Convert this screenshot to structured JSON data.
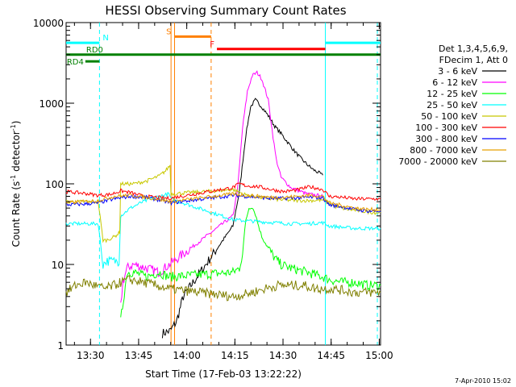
{
  "chart_data": {
    "type": "line",
    "title": "HESSI Observing Summary Count Rates",
    "xlabel": "Start Time (17-Feb-03 13:22:22)",
    "ylabel_main": "Count Rate (s",
    "ylabel_sup1": "-1",
    "ylabel_mid": " detector",
    "ylabel_sup2": "-1",
    "ylabel_end": ")",
    "y_scale": "log",
    "ylim": [
      1,
      10000
    ],
    "xlim_minutes": [
      0,
      98
    ],
    "x_unit": "minutes after 13:22:22",
    "grid": false,
    "x_ticks": [
      {
        "label": "13:30",
        "value": 7.6
      },
      {
        "label": "13:45",
        "value": 22.6
      },
      {
        "label": "14:00",
        "value": 37.6
      },
      {
        "label": "14:15",
        "value": 52.6
      },
      {
        "label": "14:30",
        "value": 67.6
      },
      {
        "label": "14:45",
        "value": 82.6
      },
      {
        "label": "15:00",
        "value": 97.6
      }
    ],
    "y_ticks": [
      {
        "label": "1",
        "value": 1
      },
      {
        "label": "10",
        "value": 10
      },
      {
        "label": "100",
        "value": 100
      },
      {
        "label": "1000",
        "value": 1000
      },
      {
        "label": "10000",
        "value": 10000
      }
    ],
    "legend_header": [
      "Det 1,3,4,5,6,9,",
      "FDecim 1, Att 0"
    ],
    "legend_position": "right",
    "series": [
      {
        "name": "3 - 6 keV",
        "color": "#000000",
        "points": [
          [
            30,
            1.4
          ],
          [
            32.5,
            1.5
          ],
          [
            34.5,
            2
          ],
          [
            36.5,
            4
          ],
          [
            52,
            30
          ],
          [
            54,
            80
          ],
          [
            56,
            400
          ],
          [
            57.5,
            900
          ],
          [
            59,
            1100
          ],
          [
            61,
            900
          ],
          [
            63,
            700
          ],
          [
            65,
            520
          ],
          [
            67,
            420
          ],
          [
            69,
            330
          ],
          [
            71,
            260
          ],
          [
            73,
            210
          ],
          [
            75,
            175
          ],
          [
            77,
            150
          ],
          [
            79,
            135
          ],
          [
            80,
            128
          ]
        ]
      },
      {
        "name": "6 - 12 keV",
        "color": "#ff00ff",
        "points": [
          [
            17,
            3
          ],
          [
            17.7,
            6
          ],
          [
            19,
            9
          ],
          [
            21,
            10
          ],
          [
            23,
            9.5
          ],
          [
            25,
            9
          ],
          [
            27,
            8.5
          ],
          [
            29,
            8
          ],
          [
            52,
            40
          ],
          [
            53.5,
            90
          ],
          [
            55,
            500
          ],
          [
            56.5,
            1400
          ],
          [
            58,
            2200
          ],
          [
            59.5,
            2400
          ],
          [
            61,
            2000
          ],
          [
            63,
            1100
          ],
          [
            64.5,
            380
          ],
          [
            65.5,
            200
          ],
          [
            67,
            120
          ],
          [
            70,
            90
          ],
          [
            75,
            75
          ],
          [
            78,
            72
          ],
          [
            80,
            70
          ]
        ]
      },
      {
        "name": "12 - 25 keV",
        "color": "#00ff00",
        "points": [
          [
            17,
            2
          ],
          [
            19,
            8
          ],
          [
            21,
            8
          ],
          [
            23,
            7.5
          ],
          [
            25,
            7
          ],
          [
            29,
            8
          ],
          [
            32,
            7
          ],
          [
            52,
            8
          ],
          [
            54,
            9
          ],
          [
            55,
            14
          ],
          [
            56,
            35
          ],
          [
            57,
            50
          ],
          [
            58,
            52
          ],
          [
            59,
            42
          ],
          [
            60,
            30
          ],
          [
            61,
            22
          ],
          [
            63,
            16
          ],
          [
            65,
            12
          ],
          [
            67,
            10
          ],
          [
            70,
            9
          ],
          [
            75,
            8
          ],
          [
            80,
            7
          ],
          [
            82,
            6.5
          ],
          [
            86,
            6
          ],
          [
            90,
            6
          ],
          [
            94,
            5.5
          ],
          [
            98,
            5.5
          ]
        ]
      },
      {
        "name": "25 - 50 keV",
        "color": "#00ffff",
        "points": [
          [
            0,
            32
          ],
          [
            10,
            32
          ],
          [
            11.5,
            10
          ],
          [
            12.5,
            11
          ],
          [
            16.5,
            11
          ],
          [
            17,
            40
          ],
          [
            20,
            50
          ],
          [
            24,
            60
          ],
          [
            28,
            68
          ],
          [
            32,
            75
          ],
          [
            32.7,
            65
          ],
          [
            52,
            36
          ],
          [
            55,
            35
          ],
          [
            60,
            34
          ],
          [
            65,
            33
          ],
          [
            70,
            32
          ],
          [
            75,
            32
          ],
          [
            80,
            33
          ],
          [
            82,
            30
          ],
          [
            86,
            29
          ],
          [
            90,
            28
          ],
          [
            94,
            28
          ],
          [
            98,
            28
          ]
        ]
      },
      {
        "name": "50 - 100 keV",
        "color": "#c8c800",
        "points": [
          [
            0,
            60
          ],
          [
            10,
            60
          ],
          [
            11.5,
            20
          ],
          [
            12.5,
            20
          ],
          [
            15,
            22
          ],
          [
            16.7,
            25
          ],
          [
            17,
            100
          ],
          [
            21,
            100
          ],
          [
            25,
            108
          ],
          [
            29,
            125
          ],
          [
            31,
            145
          ],
          [
            32.4,
            170
          ],
          [
            32.7,
            75
          ],
          [
            52,
            85
          ],
          [
            56,
            73
          ],
          [
            60,
            68
          ],
          [
            64,
            65
          ],
          [
            68,
            63
          ],
          [
            72,
            62
          ],
          [
            76,
            62
          ],
          [
            80,
            63
          ],
          [
            84,
            52
          ],
          [
            88,
            48
          ],
          [
            92,
            46
          ],
          [
            96,
            44
          ],
          [
            98,
            44
          ]
        ]
      },
      {
        "name": "100 - 300 keV",
        "color": "#ff0000",
        "points": [
          [
            0,
            80
          ],
          [
            6,
            76
          ],
          [
            10,
            72
          ],
          [
            14,
            74
          ],
          [
            17,
            82
          ],
          [
            20,
            78
          ],
          [
            24,
            70
          ],
          [
            28,
            68
          ],
          [
            32,
            66
          ],
          [
            52,
            90
          ],
          [
            54,
            100
          ],
          [
            56,
            95
          ],
          [
            60,
            92
          ],
          [
            64,
            85
          ],
          [
            68,
            80
          ],
          [
            72,
            84
          ],
          [
            76,
            92
          ],
          [
            80,
            85
          ],
          [
            82,
            70
          ],
          [
            86,
            68
          ],
          [
            90,
            65
          ],
          [
            94,
            65
          ],
          [
            98,
            65
          ]
        ]
      },
      {
        "name": "300 - 800 keV",
        "color": "#0000ff",
        "points": [
          [
            0,
            55
          ],
          [
            5,
            56
          ],
          [
            10,
            58
          ],
          [
            15,
            65
          ],
          [
            20,
            70
          ],
          [
            25,
            68
          ],
          [
            30,
            62
          ],
          [
            32.5,
            58
          ],
          [
            52,
            72
          ],
          [
            56,
            70
          ],
          [
            60,
            68
          ],
          [
            64,
            66
          ],
          [
            68,
            66
          ],
          [
            72,
            67
          ],
          [
            76,
            68
          ],
          [
            80,
            67
          ],
          [
            82,
            55
          ],
          [
            86,
            52
          ],
          [
            90,
            48
          ],
          [
            94,
            46
          ],
          [
            98,
            46
          ]
        ]
      },
      {
        "name": "800 - 7000 keV",
        "color": "#e6a000",
        "points": [
          [
            0,
            58
          ],
          [
            5,
            60
          ],
          [
            10,
            62
          ],
          [
            15,
            70
          ],
          [
            20,
            72
          ],
          [
            25,
            68
          ],
          [
            30,
            63
          ],
          [
            32.5,
            60
          ],
          [
            52,
            75
          ],
          [
            56,
            72
          ],
          [
            60,
            70
          ],
          [
            64,
            68
          ],
          [
            68,
            68
          ],
          [
            72,
            70
          ],
          [
            76,
            72
          ],
          [
            80,
            70
          ],
          [
            82,
            58
          ],
          [
            86,
            54
          ],
          [
            90,
            50
          ],
          [
            94,
            48
          ],
          [
            98,
            48
          ]
        ]
      },
      {
        "name": "7000 - 20000 keV",
        "color": "#808000",
        "points": [
          [
            0,
            4.5
          ],
          [
            3,
            5.5
          ],
          [
            6,
            6
          ],
          [
            9,
            5.5
          ],
          [
            12,
            5
          ],
          [
            15,
            5.5
          ],
          [
            17,
            6
          ],
          [
            20,
            6.5
          ],
          [
            24,
            6
          ],
          [
            28,
            5.5
          ],
          [
            32,
            5
          ],
          [
            52,
            4
          ],
          [
            55,
            4.2
          ],
          [
            58,
            4.5
          ],
          [
            62,
            5
          ],
          [
            66,
            5.5
          ],
          [
            70,
            5.5
          ],
          [
            74,
            5.5
          ],
          [
            78,
            5
          ],
          [
            82,
            5
          ],
          [
            86,
            4.8
          ],
          [
            90,
            4.5
          ],
          [
            94,
            4.5
          ],
          [
            98,
            4.5
          ]
        ]
      }
    ],
    "annotations": {
      "vlines": [
        {
          "minute": 10.4,
          "color": "#00ffff",
          "style": "dashed"
        },
        {
          "minute": 32.7,
          "color": "#ff8000",
          "style": "solid"
        },
        {
          "minute": 33.8,
          "color": "#ff8000",
          "style": "solid"
        },
        {
          "minute": 45.2,
          "color": "#ff8000",
          "style": "dashed"
        },
        {
          "minute": 80.8,
          "color": "#00ffff",
          "style": "solid"
        },
        {
          "minute": 97.0,
          "color": "#00ffff",
          "style": "dashed"
        }
      ],
      "bars": [
        {
          "label": "N",
          "color": "#00ffff",
          "from": 0,
          "to": 10.4,
          "y": 5600
        },
        {
          "label": "",
          "color": "#00ffff",
          "from": 80.8,
          "to": 98,
          "y": 5600
        },
        {
          "label": "S",
          "color": "#ff8000",
          "from": 33.8,
          "to": 45.2,
          "y": 6700
        },
        {
          "label": "F",
          "color": "#ff0000",
          "from": 47,
          "to": 80.8,
          "y": 4700
        },
        {
          "label": "RD0",
          "color": "#008000",
          "from": 0,
          "to": 98,
          "y": 4000
        },
        {
          "label": "RD4",
          "color": "#008000",
          "from": 6,
          "to": 10.4,
          "y": 3300
        }
      ]
    }
  },
  "stamp": "7-Apr-2010 15:02"
}
